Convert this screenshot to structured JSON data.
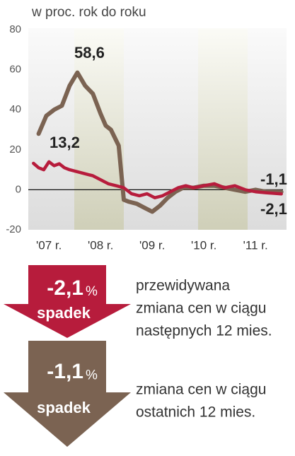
{
  "chart_data": {
    "type": "line",
    "title": "w proc. rok do roku",
    "xlim": [
      2007.0,
      2012.0
    ],
    "xticks": [
      {
        "value": 2007.4,
        "label": "'07 r."
      },
      {
        "value": 2008.4,
        "label": "'08 r."
      },
      {
        "value": 2009.4,
        "label": "'09 r."
      },
      {
        "value": 2010.4,
        "label": "'10 r."
      },
      {
        "value": 2011.4,
        "label": "'11 r."
      }
    ],
    "ylim": [
      -20,
      80
    ],
    "yticks": [
      -20,
      0,
      20,
      40,
      60,
      80
    ],
    "series": [
      {
        "color": "#7b6352",
        "x": [
          2007.2,
          2007.35,
          2007.5,
          2007.65,
          2007.8,
          2007.95,
          2008.1,
          2008.25,
          2008.4,
          2008.5,
          2008.6,
          2008.75,
          2008.85,
          2008.95,
          2009.1,
          2009.25,
          2009.4,
          2009.55,
          2009.7,
          2009.85,
          2010.0,
          2010.2,
          2010.4,
          2010.6,
          2010.8,
          2011.0,
          2011.2,
          2011.4,
          2011.6,
          2011.9
        ],
        "values": [
          28,
          37,
          40,
          42,
          52,
          58.6,
          52,
          48,
          38,
          32,
          30,
          22,
          -5,
          -6,
          -7,
          -9,
          -11,
          -8,
          -4,
          -1,
          1,
          1,
          2,
          2,
          1,
          0,
          -1,
          0,
          -1,
          -1.1
        ]
      },
      {
        "color": "#b71c3c",
        "x": [
          2007.1,
          2007.2,
          2007.3,
          2007.4,
          2007.5,
          2007.6,
          2007.7,
          2007.8,
          2007.95,
          2008.1,
          2008.25,
          2008.4,
          2008.55,
          2008.7,
          2008.85,
          2009.0,
          2009.15,
          2009.3,
          2009.45,
          2009.6,
          2009.75,
          2009.9,
          2010.05,
          2010.2,
          2010.4,
          2010.6,
          2010.8,
          2011.0,
          2011.2,
          2011.4,
          2011.6,
          2011.9
        ],
        "values": [
          13.2,
          11,
          10,
          14,
          12,
          13,
          11,
          10,
          9,
          8,
          7,
          5,
          3,
          2,
          1,
          -2,
          -3,
          -2,
          -4,
          -3,
          -1,
          1,
          2,
          1,
          2,
          3,
          1,
          2,
          0,
          -1,
          -1.5,
          -2.1
        ]
      }
    ],
    "annotations": [
      "58,6",
      "13,2",
      "-1,1",
      "-2,1"
    ]
  },
  "infographic": [
    {
      "value": "-2,1",
      "unit": "%",
      "label": "spadek",
      "color": "#b71c3c",
      "lines": [
        "przewidywana",
        "zmiana cen w ciągu",
        "następnych 12 mies."
      ]
    },
    {
      "value": "-1,1",
      "unit": "%",
      "label": "spadek",
      "color": "#7b6352",
      "lines": [
        "zmiana cen w ciągu",
        "ostatnich 12 mies."
      ]
    }
  ]
}
